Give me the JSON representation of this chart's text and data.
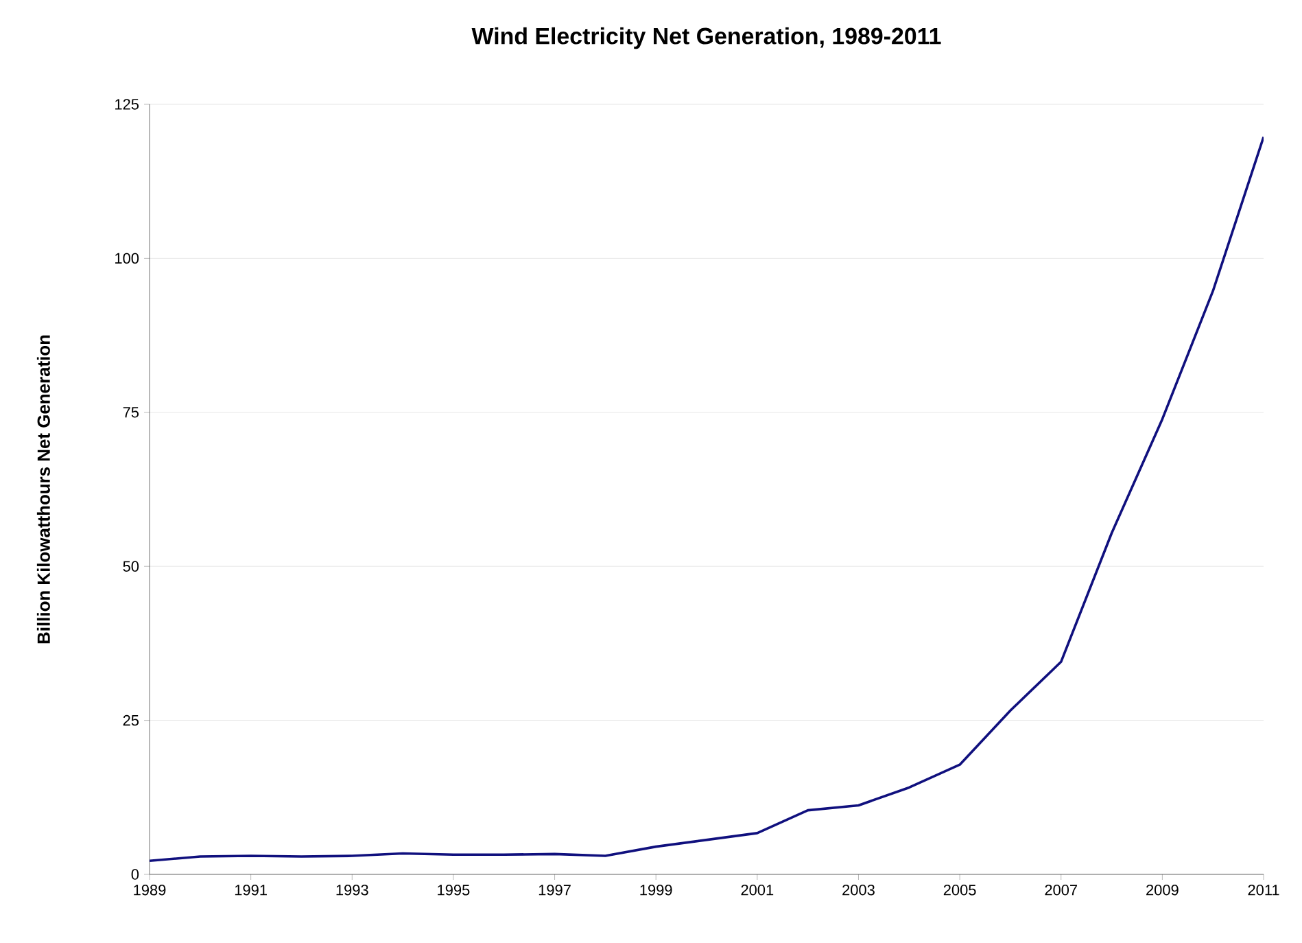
{
  "chart_data": {
    "type": "line",
    "title": "Wind Electricity Net Generation, 1989-2011",
    "ylabel": "Billion Kilowatthours Net Generation",
    "x": [
      1989,
      1990,
      1991,
      1992,
      1993,
      1994,
      1995,
      1996,
      1997,
      1998,
      1999,
      2000,
      2001,
      2002,
      2003,
      2004,
      2005,
      2006,
      2007,
      2008,
      2009,
      2010,
      2011
    ],
    "series": [
      {
        "color": "#10107e",
        "values": [
          2.2,
          2.9,
          3.0,
          2.9,
          3.0,
          3.4,
          3.2,
          3.2,
          3.3,
          3.0,
          4.5,
          5.6,
          6.7,
          10.4,
          11.2,
          14.1,
          17.8,
          26.6,
          34.5,
          55.4,
          73.9,
          94.7,
          119.7
        ]
      }
    ],
    "xlim": [
      1989,
      2011
    ],
    "ylim": [
      0,
      125
    ],
    "xticks": [
      1989,
      1991,
      1993,
      1995,
      1997,
      1999,
      2001,
      2003,
      2005,
      2007,
      2009,
      2011
    ],
    "yticks": [
      0,
      25,
      50,
      75,
      100,
      125
    ],
    "grid": "y",
    "marker": "none",
    "line_style": "solid"
  }
}
